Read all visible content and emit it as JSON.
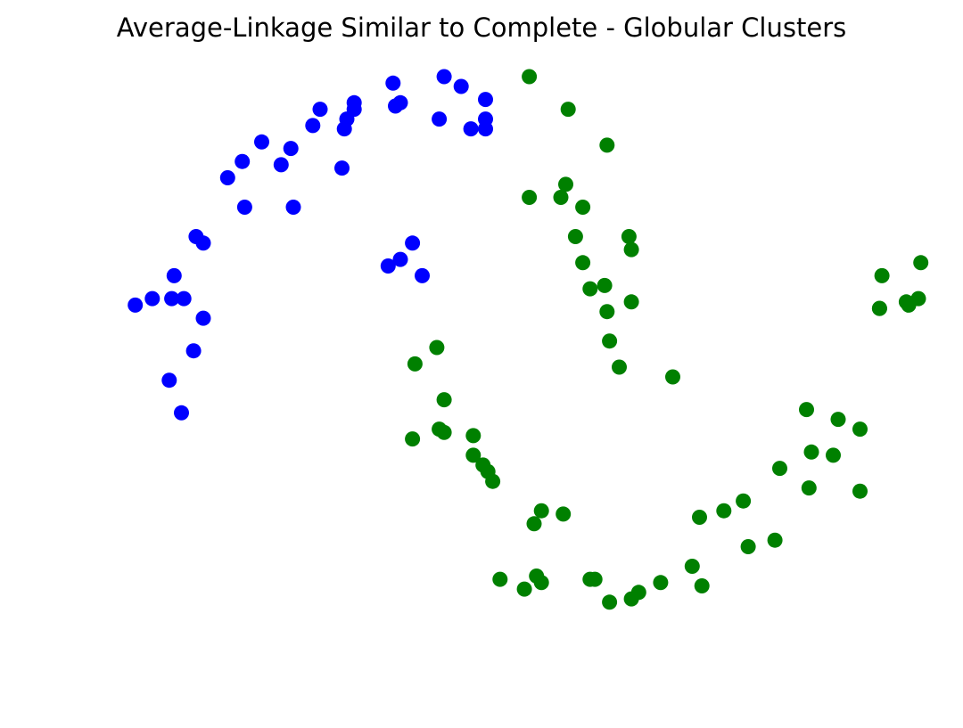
{
  "chart_data": {
    "type": "scatter",
    "title": "Average-Linkage Similar to Complete - Globular Clusters",
    "xlabel": "",
    "ylabel": "",
    "axes_visible": false,
    "grid": false,
    "legend": "none",
    "xlim": [
      -1.3,
      2.3
    ],
    "ylim": [
      -0.68,
      1.25
    ],
    "series": [
      {
        "color": "#0000ff",
        "points": [
          [
            0.14,
            1.2
          ],
          [
            0.35,
            1.22
          ],
          [
            0.42,
            1.19
          ],
          [
            0.52,
            1.15
          ],
          [
            0.52,
            1.09
          ],
          [
            0.46,
            1.06
          ],
          [
            0.52,
            1.06
          ],
          [
            0.33,
            1.09
          ],
          [
            0.17,
            1.14
          ],
          [
            -0.02,
            1.14
          ],
          [
            0.15,
            1.13
          ],
          [
            -0.02,
            1.12
          ],
          [
            -0.16,
            1.12
          ],
          [
            -0.05,
            1.09
          ],
          [
            -0.06,
            1.06
          ],
          [
            -0.19,
            1.07
          ],
          [
            -0.4,
            1.02
          ],
          [
            -0.28,
            1.0
          ],
          [
            -0.48,
            0.96
          ],
          [
            -0.32,
            0.95
          ],
          [
            -0.54,
            0.91
          ],
          [
            -0.07,
            0.94
          ],
          [
            -0.47,
            0.82
          ],
          [
            -0.27,
            0.82
          ],
          [
            -0.67,
            0.73
          ],
          [
            -0.64,
            0.71
          ],
          [
            0.22,
            0.71
          ],
          [
            0.17,
            0.66
          ],
          [
            0.12,
            0.64
          ],
          [
            0.26,
            0.61
          ],
          [
            -0.76,
            0.61
          ],
          [
            -0.85,
            0.54
          ],
          [
            -0.92,
            0.52
          ],
          [
            -0.77,
            0.54
          ],
          [
            -0.72,
            0.54
          ],
          [
            -0.64,
            0.48
          ],
          [
            -0.68,
            0.38
          ],
          [
            -0.78,
            0.29
          ],
          [
            -0.73,
            0.19
          ]
        ]
      },
      {
        "color": "#008000",
        "points": [
          [
            0.7,
            1.22
          ],
          [
            0.86,
            1.12
          ],
          [
            1.02,
            1.01
          ],
          [
            0.85,
            0.89
          ],
          [
            0.83,
            0.85
          ],
          [
            0.7,
            0.85
          ],
          [
            0.92,
            0.82
          ],
          [
            0.89,
            0.73
          ],
          [
            1.11,
            0.73
          ],
          [
            1.12,
            0.69
          ],
          [
            0.92,
            0.65
          ],
          [
            1.01,
            0.58
          ],
          [
            0.95,
            0.57
          ],
          [
            1.12,
            0.53
          ],
          [
            1.02,
            0.5
          ],
          [
            1.03,
            0.41
          ],
          [
            1.07,
            0.33
          ],
          [
            1.29,
            0.3
          ],
          [
            2.31,
            0.65
          ],
          [
            2.15,
            0.61
          ],
          [
            2.3,
            0.54
          ],
          [
            2.25,
            0.53
          ],
          [
            2.26,
            0.52
          ],
          [
            2.14,
            0.51
          ],
          [
            2.14,
            0.51
          ],
          [
            1.84,
            0.2
          ],
          [
            1.97,
            0.17
          ],
          [
            2.06,
            0.14
          ],
          [
            1.86,
            0.07
          ],
          [
            1.95,
            0.06
          ],
          [
            1.73,
            0.02
          ],
          [
            1.85,
            -0.04
          ],
          [
            2.06,
            -0.05
          ],
          [
            1.58,
            -0.08
          ],
          [
            1.5,
            -0.11
          ],
          [
            1.4,
            -0.13
          ],
          [
            1.71,
            -0.2
          ],
          [
            1.6,
            -0.22
          ],
          [
            1.37,
            -0.28
          ],
          [
            1.41,
            -0.34
          ],
          [
            1.24,
            -0.33
          ],
          [
            1.15,
            -0.36
          ],
          [
            1.12,
            -0.38
          ],
          [
            1.03,
            -0.39
          ],
          [
            0.97,
            -0.32
          ],
          [
            0.95,
            -0.32
          ],
          [
            0.75,
            -0.33
          ],
          [
            0.73,
            -0.31
          ],
          [
            0.58,
            -0.32
          ],
          [
            0.68,
            -0.35
          ],
          [
            0.84,
            -0.12
          ],
          [
            0.75,
            -0.11
          ],
          [
            0.72,
            -0.15
          ],
          [
            0.55,
            -0.02
          ],
          [
            0.53,
            0.01
          ],
          [
            0.51,
            0.03
          ],
          [
            0.47,
            0.06
          ],
          [
            0.47,
            0.12
          ],
          [
            0.35,
            0.13
          ],
          [
            0.33,
            0.14
          ],
          [
            0.35,
            0.23
          ],
          [
            0.22,
            0.11
          ],
          [
            0.23,
            0.34
          ],
          [
            0.32,
            0.39
          ]
        ]
      }
    ]
  }
}
